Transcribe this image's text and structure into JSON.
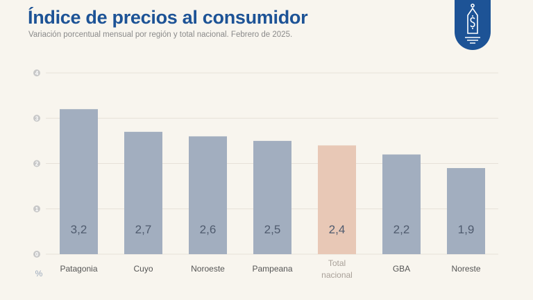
{
  "chart_data": {
    "type": "bar",
    "title": "Índice de precios al consumidor",
    "subtitle": "Variación porcentual mensual por región y total nacional. Febrero de 2025.",
    "categories": [
      "Patagonia",
      "Cuyo",
      "Noroeste",
      "Pampeana",
      "Total nacional",
      "GBA",
      "Noreste"
    ],
    "values": [
      3.2,
      2.7,
      2.6,
      2.5,
      2.4,
      2.2,
      1.9
    ],
    "value_labels": [
      "3,2",
      "2,7",
      "2,6",
      "2,5",
      "2,4",
      "2,2",
      "1,9"
    ],
    "highlight": "Total nacional",
    "ylabel": "%",
    "ylim": [
      0,
      4
    ],
    "yticks": [
      0,
      1,
      2,
      3,
      4
    ],
    "grid": true,
    "colors": {
      "bar": "#a2aebf",
      "highlight": "#e8c8b6",
      "title": "#1d5396"
    }
  },
  "badge_icon": "price-tag-dollar-icon"
}
